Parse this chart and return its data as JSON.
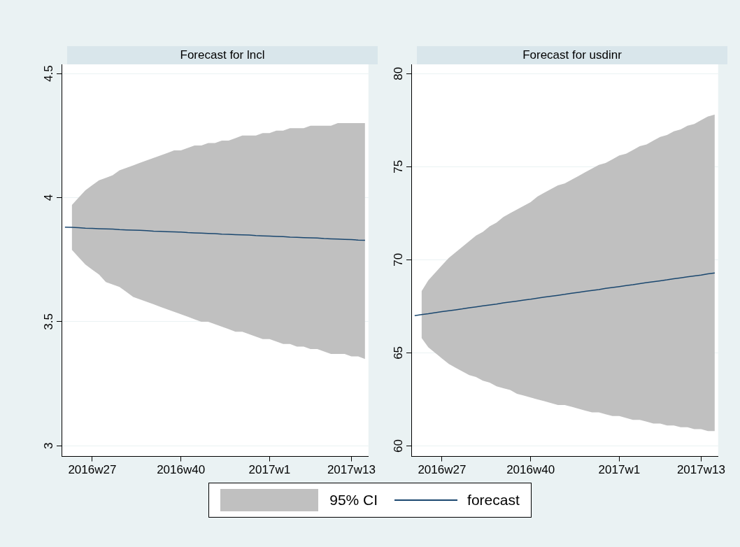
{
  "chart_data": [
    {
      "type": "line",
      "title": "Forecast for lncl",
      "categories": [
        null,
        null,
        null,
        null,
        "2016w27",
        null,
        null,
        null,
        null,
        null,
        null,
        null,
        null,
        null,
        null,
        null,
        null,
        "2016w40",
        null,
        null,
        null,
        null,
        null,
        null,
        null,
        null,
        null,
        null,
        null,
        null,
        "2017w1",
        null,
        null,
        null,
        null,
        null,
        null,
        null,
        null,
        null,
        null,
        null,
        "2017w13",
        null,
        null
      ],
      "ylim": [
        2.957,
        4.537
      ],
      "yticks": [
        3,
        3.5,
        4,
        4.5
      ],
      "grid": "y",
      "legend": "bottom",
      "annotations": [
        "95% CI"
      ],
      "series": [
        {
          "name": "forecast",
          "color": "#1a476f",
          "values": [
            3.881,
            3.88,
            3.879,
            3.877,
            3.876,
            3.875,
            3.874,
            3.873,
            3.871,
            3.87,
            3.869,
            3.868,
            3.867,
            3.865,
            3.864,
            3.863,
            3.862,
            3.861,
            3.859,
            3.858,
            3.857,
            3.856,
            3.855,
            3.853,
            3.852,
            3.851,
            3.85,
            3.849,
            3.847,
            3.846,
            3.845,
            3.844,
            3.843,
            3.841,
            3.84,
            3.839,
            3.838,
            3.837,
            3.835,
            3.834,
            3.833,
            3.832,
            3.831,
            3.829,
            3.828
          ],
          "upper": [
            null,
            3.97,
            4.0,
            4.03,
            4.05,
            4.07,
            4.08,
            4.09,
            4.11,
            4.12,
            4.13,
            4.14,
            4.15,
            4.16,
            4.17,
            4.18,
            4.19,
            4.19,
            4.2,
            4.21,
            4.21,
            4.22,
            4.22,
            4.23,
            4.23,
            4.24,
            4.25,
            4.25,
            4.25,
            4.26,
            4.26,
            4.27,
            4.27,
            4.28,
            4.28,
            4.28,
            4.29,
            4.29,
            4.29,
            4.29,
            4.3,
            4.3,
            4.3,
            4.3,
            4.3
          ],
          "lower": [
            null,
            3.79,
            3.76,
            3.73,
            3.71,
            3.69,
            3.66,
            3.65,
            3.64,
            3.62,
            3.6,
            3.59,
            3.58,
            3.57,
            3.56,
            3.55,
            3.54,
            3.53,
            3.52,
            3.51,
            3.5,
            3.5,
            3.49,
            3.48,
            3.47,
            3.46,
            3.46,
            3.45,
            3.44,
            3.43,
            3.43,
            3.42,
            3.41,
            3.41,
            3.4,
            3.4,
            3.39,
            3.39,
            3.38,
            3.37,
            3.37,
            3.37,
            3.36,
            3.36,
            3.35
          ]
        }
      ]
    },
    {
      "type": "line",
      "title": "Forecast for usdinr",
      "categories": [
        null,
        null,
        null,
        null,
        "2016w27",
        null,
        null,
        null,
        null,
        null,
        null,
        null,
        null,
        null,
        null,
        null,
        null,
        "2016w40",
        null,
        null,
        null,
        null,
        null,
        null,
        null,
        null,
        null,
        null,
        null,
        null,
        "2017w1",
        null,
        null,
        null,
        null,
        null,
        null,
        null,
        null,
        null,
        null,
        null,
        "2017w13",
        null,
        null
      ],
      "ylim": [
        59.43,
        80.5
      ],
      "yticks": [
        60,
        65,
        70,
        75,
        80
      ],
      "grid": "y",
      "series": [
        {
          "color": "#1a476f",
          "values": [
            67.0,
            67.05,
            67.1,
            67.16,
            67.21,
            67.26,
            67.31,
            67.36,
            67.42,
            67.47,
            67.52,
            67.57,
            67.62,
            67.68,
            67.73,
            67.78,
            67.83,
            67.88,
            67.94,
            67.99,
            68.04,
            68.09,
            68.14,
            68.2,
            68.25,
            68.3,
            68.35,
            68.4,
            68.46,
            68.51,
            68.56,
            68.61,
            68.66,
            68.72,
            68.77,
            68.82,
            68.87,
            68.92,
            68.98,
            69.03,
            69.08,
            69.13,
            69.18,
            69.24,
            69.29
          ],
          "upper": [
            null,
            68.3,
            68.9,
            69.3,
            69.7,
            70.1,
            70.4,
            70.7,
            71.0,
            71.3,
            71.5,
            71.8,
            72.0,
            72.3,
            72.5,
            72.7,
            72.9,
            73.1,
            73.4,
            73.6,
            73.8,
            74.0,
            74.1,
            74.3,
            74.5,
            74.7,
            74.9,
            75.1,
            75.2,
            75.4,
            75.6,
            75.7,
            75.9,
            76.1,
            76.2,
            76.4,
            76.6,
            76.7,
            76.9,
            77.0,
            77.2,
            77.3,
            77.5,
            77.7,
            77.8
          ],
          "lower": [
            null,
            65.8,
            65.3,
            65.0,
            64.7,
            64.4,
            64.2,
            64.0,
            63.8,
            63.7,
            63.5,
            63.4,
            63.2,
            63.1,
            63.0,
            62.8,
            62.7,
            62.6,
            62.5,
            62.4,
            62.3,
            62.2,
            62.2,
            62.1,
            62.0,
            61.9,
            61.8,
            61.8,
            61.7,
            61.6,
            61.6,
            61.5,
            61.4,
            61.4,
            61.3,
            61.2,
            61.2,
            61.1,
            61.1,
            61.0,
            61.0,
            60.9,
            60.9,
            60.8,
            60.8
          ]
        }
      ]
    }
  ]
}
